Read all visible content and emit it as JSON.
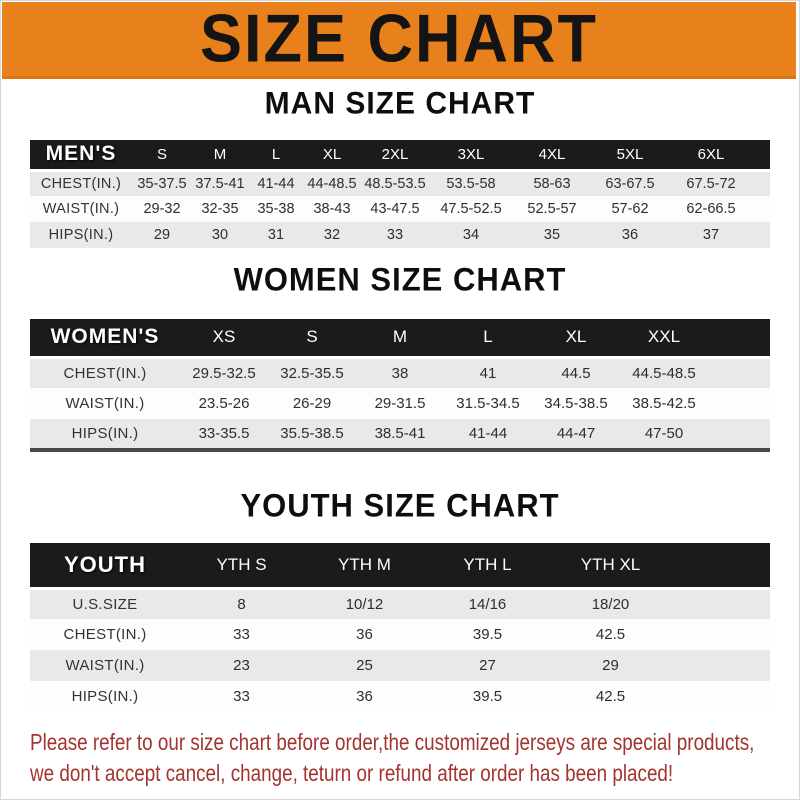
{
  "header": {
    "title": "SIZE CHART"
  },
  "sections": [
    {
      "title": "MAN SIZE CHART",
      "label": "MEN'S",
      "columns": [
        "S",
        "M",
        "L",
        "XL",
        "2XL",
        "3XL",
        "4XL",
        "5XL",
        "6XL"
      ],
      "rows": [
        {
          "label": "CHEST(IN.)",
          "values": [
            "35-37.5",
            "37.5-41",
            "41-44",
            "44-48.5",
            "48.5-53.5",
            "53.5-58",
            "58-63",
            "63-67.5",
            "67.5-72"
          ]
        },
        {
          "label": "WAIST(IN.)",
          "values": [
            "29-32",
            "32-35",
            "35-38",
            "38-43",
            "43-47.5",
            "47.5-52.5",
            "52.5-57",
            "57-62",
            "62-66.5"
          ]
        },
        {
          "label": "HIPS(IN.)",
          "values": [
            "29",
            "30",
            "31",
            "32",
            "33",
            "34",
            "35",
            "36",
            "37"
          ]
        }
      ]
    },
    {
      "title": "WOMEN SIZE CHART",
      "label": "WOMEN'S",
      "columns": [
        "XS",
        "S",
        "M",
        "L",
        "XL",
        "XXL"
      ],
      "rows": [
        {
          "label": "CHEST(IN.)",
          "values": [
            "29.5-32.5",
            "32.5-35.5",
            "38",
            "41",
            "44.5",
            "44.5-48.5"
          ]
        },
        {
          "label": "WAIST(IN.)",
          "values": [
            "23.5-26",
            "26-29",
            "29-31.5",
            "31.5-34.5",
            "34.5-38.5",
            "38.5-42.5"
          ]
        },
        {
          "label": "HIPS(IN.)",
          "values": [
            "33-35.5",
            "35.5-38.5",
            "38.5-41",
            "41-44",
            "44-47",
            "47-50"
          ]
        }
      ]
    },
    {
      "title": "YOUTH SIZE CHART",
      "label": "YOUTH",
      "columns": [
        "YTH S",
        "YTH M",
        "YTH L",
        "YTH XL"
      ],
      "rows": [
        {
          "label": "U.S.SIZE",
          "values": [
            "8",
            "10/12",
            "14/16",
            "18/20"
          ]
        },
        {
          "label": "CHEST(IN.)",
          "values": [
            "33",
            "36",
            "39.5",
            "42.5"
          ]
        },
        {
          "label": "WAIST(IN.)",
          "values": [
            "23",
            "25",
            "27",
            "29"
          ]
        },
        {
          "label": "HIPS(IN.)",
          "values": [
            "33",
            "36",
            "39.5",
            "42.5"
          ]
        }
      ]
    }
  ],
  "footer": {
    "line1": "Please refer to our size chart before order,the customized jerseys are special products,",
    "line2": "we don't accept cancel, change, teturn or refund after order has been placed!"
  },
  "colors": {
    "banner_bg": "#e8811c",
    "bar_bg": "#1b1b1b",
    "stripe_gray": "#e9e9e9",
    "stripe_white": "#fdfdfd",
    "footer_red": "#a33430"
  }
}
